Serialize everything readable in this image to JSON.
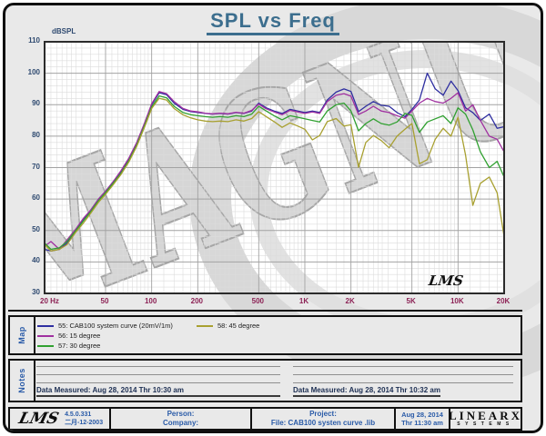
{
  "title": "SPL vs Freq",
  "watermark": "MAGNUS",
  "plot_signature": "LMS",
  "chart_data": {
    "type": "line",
    "title": "SPL vs Freq",
    "x_axis": {
      "label": "Hz",
      "scale": "log",
      "min": 20,
      "max": 20000,
      "major_ticks": [
        50,
        100,
        200,
        500,
        1000,
        2000,
        5000,
        10000
      ],
      "tick_labels": [
        {
          "f": 20,
          "label": "20 Hz"
        },
        {
          "f": 50,
          "label": "50"
        },
        {
          "f": 100,
          "label": "100"
        },
        {
          "f": 200,
          "label": "200"
        },
        {
          "f": 500,
          "label": "500"
        },
        {
          "f": 1000,
          "label": "1K"
        },
        {
          "f": 2000,
          "label": "2K"
        },
        {
          "f": 5000,
          "label": "5K"
        },
        {
          "f": 10000,
          "label": "10K"
        },
        {
          "f": 20000,
          "label": "20K"
        }
      ]
    },
    "y_axis": {
      "label": "dBSPL",
      "min": 30,
      "max": 110,
      "major_step": 10,
      "minor_step": 2,
      "tick_labels": [
        110,
        100,
        90,
        80,
        70,
        60,
        50,
        40,
        30
      ]
    },
    "freqs": [
      20,
      22,
      25,
      28,
      32,
      36,
      40,
      45,
      50,
      56,
      63,
      71,
      80,
      90,
      100,
      112,
      125,
      140,
      160,
      180,
      200,
      224,
      250,
      280,
      315,
      355,
      400,
      450,
      500,
      560,
      630,
      710,
      800,
      900,
      1000,
      1120,
      1250,
      1400,
      1600,
      1800,
      2000,
      2240,
      2500,
      2800,
      3150,
      3550,
      4000,
      4500,
      5000,
      5600,
      6300,
      7100,
      8000,
      9000,
      10000,
      11200,
      12500,
      14000,
      16000,
      18000,
      20000
    ],
    "series": [
      {
        "id": "55",
        "name": "55: CAB100 system curve  (20mV/1m)",
        "color": "#2e2ea0",
        "values": [
          44,
          43.5,
          44,
          46,
          50,
          53.5,
          56.5,
          60,
          62.5,
          65.5,
          68.5,
          72.5,
          77.5,
          84,
          90,
          93.8,
          93.2,
          90.5,
          88.5,
          87.8,
          87.5,
          87.2,
          87,
          87.2,
          87,
          87.5,
          87.2,
          88,
          90.5,
          89,
          88,
          87.2,
          88.5,
          88,
          87.5,
          88,
          87.5,
          91.5,
          94,
          95,
          94.2,
          87.8,
          89.5,
          91,
          89.8,
          89.5,
          87.5,
          86.2,
          88.5,
          91.5,
          100,
          95,
          93,
          97.5,
          94.5,
          89,
          87.5,
          85,
          87,
          82.5,
          83
        ]
      },
      {
        "id": "56",
        "name": "56: 15 degree",
        "color": "#a030a0",
        "values": [
          45,
          46.5,
          44,
          47,
          50.5,
          54,
          56.5,
          60,
          62.5,
          65.5,
          69,
          73,
          78,
          84.3,
          90.3,
          94.2,
          93.5,
          91,
          88.8,
          88,
          87.7,
          87.3,
          87.1,
          87.3,
          87.1,
          87.6,
          87.3,
          88.2,
          90.2,
          88.7,
          87.7,
          86.8,
          88.2,
          87.7,
          87.2,
          87.7,
          87.2,
          91,
          93,
          93.5,
          92.7,
          86.9,
          88,
          89.5,
          88,
          87.5,
          86.5,
          85.7,
          88,
          90.5,
          92,
          91,
          90.5,
          92,
          93.8,
          88,
          90,
          85,
          80,
          79,
          75
        ]
      },
      {
        "id": "57",
        "name": "57: 30 degree",
        "color": "#30a030",
        "values": [
          46,
          44,
          44.5,
          46.5,
          50,
          53.2,
          56,
          59.5,
          62,
          65,
          68.2,
          72.2,
          77.2,
          83.5,
          89.3,
          92.8,
          92.2,
          89.5,
          87.5,
          86.8,
          86.5,
          86.2,
          86,
          86.2,
          86,
          86.5,
          86.2,
          87,
          89.5,
          88,
          86.5,
          85.2,
          86.5,
          86,
          85.5,
          85,
          84.5,
          88,
          90,
          90.5,
          88,
          81.7,
          84,
          85.5,
          84,
          83.5,
          84.5,
          87.2,
          86.6,
          81.2,
          84.5,
          85.5,
          86.5,
          84,
          89,
          87,
          82,
          75,
          70,
          72,
          67
        ]
      },
      {
        "id": "58",
        "name": "58: 45 degree",
        "color": "#a8a030",
        "values": [
          45.5,
          43.5,
          44,
          45.5,
          49.5,
          52.5,
          55.5,
          59,
          61.5,
          64.5,
          67.8,
          71.8,
          76.8,
          83,
          88.8,
          92,
          91.5,
          88.8,
          86.8,
          85.8,
          85.2,
          84.8,
          84.6,
          84.8,
          84.6,
          85.2,
          84.8,
          85.6,
          87.8,
          86.2,
          84.6,
          82.8,
          84.2,
          83.2,
          82.2,
          78.8,
          80.2,
          84.6,
          85.6,
          83.2,
          83.6,
          70.1,
          78,
          80.2,
          78.6,
          76.3,
          80,
          82.2,
          84,
          71.2,
          72.5,
          79,
          82.5,
          80,
          86,
          74,
          58,
          65,
          67,
          62,
          48
        ]
      }
    ]
  },
  "map": {
    "label": "Map"
  },
  "notes": {
    "label": "Notes",
    "left_data_measured": "Data Measured: Aug 28, 2014  Thr 10:30 am",
    "right_data_measured": "Data Measured: Aug 28, 2014  Thr 10:32 am"
  },
  "footer": {
    "lms_logo": "LMS",
    "version": "4.5.0.331",
    "version_date": "二月-12-2003",
    "person_label": "Person:",
    "company_label": "Company:",
    "project_label": "Project:",
    "project_file": "File: CAB100 systen curve .lib",
    "measure_date": "Aug 28, 2014",
    "measure_time": "Thr 11:30 am",
    "brand": "LINEARX",
    "brand_sub": "SYSTEMS"
  }
}
